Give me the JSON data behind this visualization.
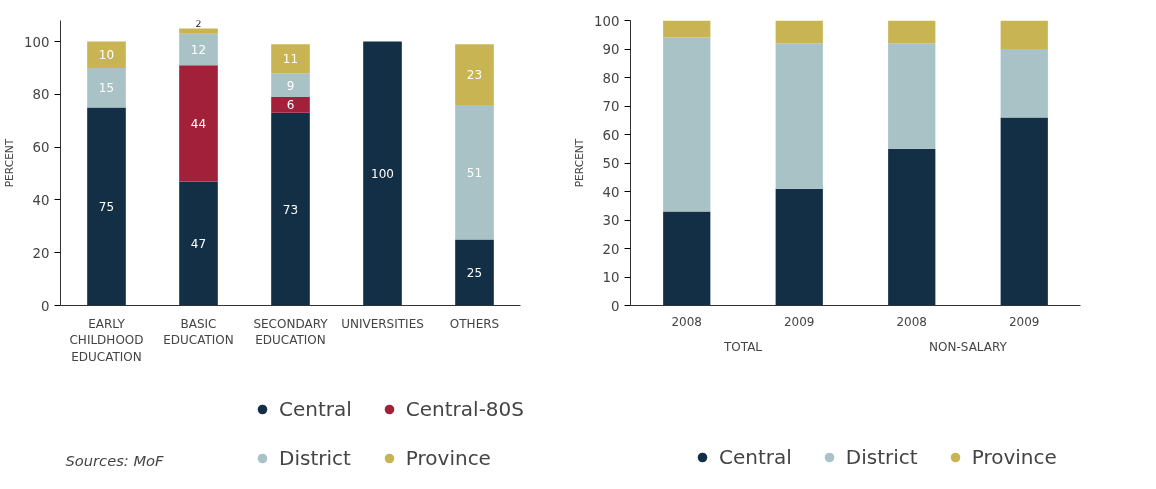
{
  "chart_data": [
    {
      "type": "bar",
      "stacked": true,
      "ylabel": "PERCENT",
      "categories": [
        "EARLY CHILDHOOD EDUCATION",
        "BASIC EDUCATION",
        "SECONDARY EDUCATION",
        "UNIVERSITIES",
        "OTHERS"
      ],
      "ylim": [
        0,
        108
      ],
      "yticks": [
        0,
        20,
        40,
        60,
        80,
        100
      ],
      "grid": false,
      "legend": "bottom",
      "data_labels": true,
      "series": [
        {
          "name": "Central",
          "color": "#132f45",
          "values": [
            75,
            47,
            73,
            100,
            25
          ]
        },
        {
          "name": "Central-80S",
          "color": "#a3203a",
          "values": [
            null,
            44,
            6,
            null,
            null
          ]
        },
        {
          "name": "District",
          "color": "#a8c2c6",
          "values": [
            15,
            12,
            9,
            null,
            51
          ]
        },
        {
          "name": "Province",
          "color": "#c9b454",
          "values": [
            10,
            2,
            11,
            null,
            23
          ]
        }
      ],
      "annotations": [
        "Sources: MoF"
      ]
    },
    {
      "type": "bar",
      "stacked": true,
      "ylabel": "PERCENT",
      "categories": [
        "2008",
        "2009",
        "2008",
        "2009"
      ],
      "ylim": [
        0,
        100
      ],
      "yticks": [
        0,
        10,
        20,
        30,
        40,
        50,
        60,
        70,
        80,
        90,
        100
      ],
      "grid": false,
      "legend": "bottom",
      "series": [
        {
          "name": "Central",
          "color": "#132f45",
          "values": [
            33,
            41,
            55,
            66
          ]
        },
        {
          "name": "District",
          "color": "#a8c2c6",
          "values": [
            61,
            51,
            37,
            24
          ]
        },
        {
          "name": "Province",
          "color": "#c9b454",
          "values": [
            6,
            8,
            8,
            10
          ]
        }
      ],
      "annotations": [
        "TOTAL",
        "NON-SALARY"
      ]
    }
  ]
}
